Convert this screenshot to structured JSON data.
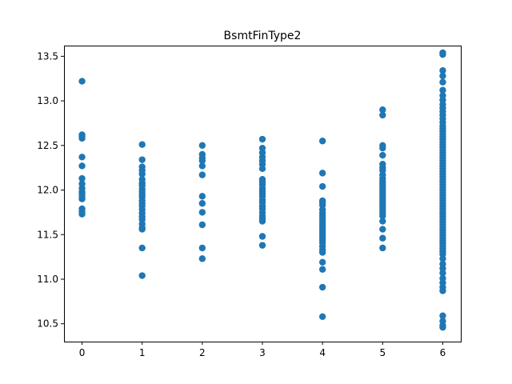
{
  "chart_data": {
    "type": "scatter",
    "title": "BsmtFinType2",
    "xlabel": "",
    "ylabel": "",
    "xlim": [
      -0.3,
      6.3
    ],
    "ylim": [
      10.3,
      13.62
    ],
    "xticks": [
      0,
      1,
      2,
      3,
      4,
      5,
      6
    ],
    "yticks": [
      10.5,
      11.0,
      11.5,
      12.0,
      12.5,
      13.0,
      13.5
    ],
    "ytick_labels": [
      "10.5",
      "11.0",
      "11.5",
      "12.0",
      "12.5",
      "13.0",
      "13.5"
    ],
    "grid": false,
    "color": "#1f77b4",
    "series": [
      {
        "x": 0,
        "values": [
          13.22,
          12.62,
          12.6,
          12.58,
          12.37,
          12.27,
          12.13,
          12.07,
          12.02,
          11.98,
          11.96,
          11.93,
          11.9,
          11.79,
          11.76,
          11.73
        ]
      },
      {
        "x": 1,
        "values": [
          12.51,
          12.34,
          12.26,
          12.22,
          12.18,
          12.12,
          12.08,
          12.05,
          12.01,
          11.98,
          11.95,
          11.92,
          11.88,
          11.85,
          11.82,
          11.78,
          11.74,
          11.7,
          11.67,
          11.62,
          11.58,
          11.56,
          11.35,
          11.04
        ]
      },
      {
        "x": 2,
        "values": [
          12.5,
          12.4,
          12.36,
          12.33,
          12.27,
          12.17,
          11.93,
          11.85,
          11.75,
          11.61,
          11.35,
          11.23
        ]
      },
      {
        "x": 3,
        "values": [
          12.57,
          12.47,
          12.42,
          12.37,
          12.33,
          12.29,
          12.24,
          12.12,
          12.09,
          12.06,
          12.02,
          11.99,
          11.96,
          11.93,
          11.89,
          11.86,
          11.82,
          11.79,
          11.75,
          11.71,
          11.68,
          11.65,
          11.48,
          11.38
        ]
      },
      {
        "x": 4,
        "values": [
          12.55,
          12.19,
          12.04,
          11.88,
          11.86,
          11.83,
          11.78,
          11.74,
          11.71,
          11.68,
          11.65,
          11.62,
          11.59,
          11.56,
          11.53,
          11.5,
          11.47,
          11.44,
          11.41,
          11.37,
          11.33,
          11.3,
          11.19,
          11.11,
          10.91,
          10.58
        ]
      },
      {
        "x": 5,
        "values": [
          12.9,
          12.84,
          12.5,
          12.47,
          12.39,
          12.29,
          12.25,
          12.22,
          12.17,
          12.13,
          12.1,
          12.07,
          12.04,
          12.01,
          11.98,
          11.95,
          11.92,
          11.89,
          11.86,
          11.83,
          11.8,
          11.77,
          11.74,
          11.71,
          11.65,
          11.56,
          11.46,
          11.35
        ]
      },
      {
        "x": 6,
        "values": [
          13.54,
          13.52,
          13.34,
          13.28,
          13.21,
          13.12,
          13.06,
          13.01,
          12.96,
          12.92,
          12.88,
          12.84,
          12.8,
          12.76,
          12.72,
          12.69,
          12.66,
          12.63,
          12.6,
          12.57,
          12.54,
          12.51,
          12.48,
          12.45,
          12.42,
          12.39,
          12.36,
          12.33,
          12.3,
          12.27,
          12.24,
          12.21,
          12.18,
          12.15,
          12.12,
          12.09,
          12.06,
          12.03,
          12.0,
          11.97,
          11.94,
          11.91,
          11.88,
          11.85,
          11.82,
          11.79,
          11.76,
          11.73,
          11.7,
          11.67,
          11.64,
          11.61,
          11.58,
          11.55,
          11.52,
          11.49,
          11.46,
          11.43,
          11.4,
          11.37,
          11.34,
          11.31,
          11.28,
          11.23,
          11.17,
          11.12,
          11.07,
          11.01,
          10.96,
          10.91,
          10.87,
          10.59,
          10.53,
          10.48,
          10.46
        ]
      }
    ]
  }
}
